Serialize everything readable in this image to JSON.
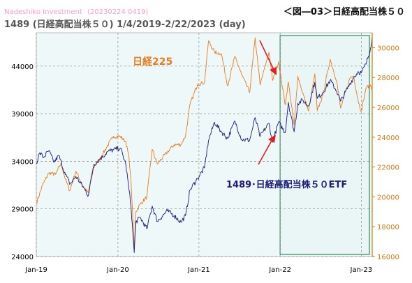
{
  "watermark": "Nadeshiko Investment",
  "watermark_date": "(20230224 0419)",
  "figure_title": "＜図―03＞日経高配当株５０",
  "subtitle": "1489 (日経高配当株５０) 1/4/2019-2/22/2023 (day)",
  "colors": {
    "etf_line": "#1a1a7a",
    "n225_line": "#e87b1e",
    "grid": "#888888",
    "highlight_border": "#2e8b57",
    "highlight_fill": "#eaf6f6",
    "plot_bg": "#eef8f8",
    "arrow": "#e02020",
    "right_axis": "#d07a10"
  },
  "chart_data": {
    "type": "line",
    "x_ticks": [
      "Jan-19",
      "Jan-20",
      "Jan-21",
      "Jan-22",
      "Jan-23"
    ],
    "xlim": [
      "2019-01-04",
      "2023-02-22"
    ],
    "y_left": {
      "ticks": [
        24000,
        29000,
        34000,
        39000,
        44000
      ],
      "ylim": [
        24000,
        47500
      ]
    },
    "y_right": {
      "ticks": [
        16000,
        18000,
        20000,
        22000,
        24000,
        26000,
        28000,
        30000
      ],
      "ylim": [
        16000,
        31000
      ]
    },
    "grid": true,
    "series": [
      {
        "name": "日経225",
        "axis": "right",
        "points": [
          [
            "2019-01-04",
            19560
          ],
          [
            "2019-02-01",
            20780
          ],
          [
            "2019-03-01",
            21600
          ],
          [
            "2019-04-01",
            21510
          ],
          [
            "2019-04-25",
            22260
          ],
          [
            "2019-05-15",
            21180
          ],
          [
            "2019-06-03",
            20400
          ],
          [
            "2019-07-01",
            21720
          ],
          [
            "2019-08-06",
            20580
          ],
          [
            "2019-08-26",
            20260
          ],
          [
            "2019-09-15",
            21900
          ],
          [
            "2019-10-15",
            22500
          ],
          [
            "2019-11-15",
            23300
          ],
          [
            "2019-12-17",
            24060
          ],
          [
            "2020-01-17",
            24040
          ],
          [
            "2020-02-10",
            23700
          ],
          [
            "2020-02-25",
            22600
          ],
          [
            "2020-03-05",
            21000
          ],
          [
            "2020-03-19",
            16550
          ],
          [
            "2020-03-26",
            19000
          ],
          [
            "2020-04-15",
            19500
          ],
          [
            "2020-05-15",
            20000
          ],
          [
            "2020-06-08",
            23180
          ],
          [
            "2020-07-01",
            22200
          ],
          [
            "2020-08-15",
            23000
          ],
          [
            "2020-09-15",
            23500
          ],
          [
            "2020-10-15",
            23500
          ],
          [
            "2020-11-05",
            24100
          ],
          [
            "2020-11-25",
            26200
          ],
          [
            "2020-12-29",
            27560
          ],
          [
            "2021-01-29",
            27660
          ],
          [
            "2021-02-16",
            30460
          ],
          [
            "2021-03-15",
            29700
          ],
          [
            "2021-04-15",
            29600
          ],
          [
            "2021-05-13",
            27450
          ],
          [
            "2021-06-15",
            29400
          ],
          [
            "2021-07-15",
            28200
          ],
          [
            "2021-08-20",
            27000
          ],
          [
            "2021-09-14",
            30670
          ],
          [
            "2021-10-06",
            27500
          ],
          [
            "2021-11-15",
            29700
          ],
          [
            "2021-12-01",
            27800
          ],
          [
            "2021-12-28",
            29060
          ],
          [
            "2022-01-27",
            26170
          ],
          [
            "2022-02-10",
            27700
          ],
          [
            "2022-03-08",
            24800
          ],
          [
            "2022-03-25",
            28100
          ],
          [
            "2022-04-15",
            27000
          ],
          [
            "2022-05-12",
            25750
          ],
          [
            "2022-06-09",
            28250
          ],
          [
            "2022-06-20",
            25770
          ],
          [
            "2022-07-15",
            26800
          ],
          [
            "2022-08-17",
            29220
          ],
          [
            "2022-09-15",
            27800
          ],
          [
            "2022-10-03",
            25940
          ],
          [
            "2022-11-15",
            28000
          ],
          [
            "2022-12-01",
            28100
          ],
          [
            "2022-12-20",
            26500
          ],
          [
            "2023-01-04",
            25720
          ],
          [
            "2023-01-25",
            27300
          ],
          [
            "2023-02-14",
            27500
          ],
          [
            "2023-02-22",
            27100
          ]
        ]
      },
      {
        "name": "1489･日経高配当株５０ETF",
        "axis": "left",
        "points": [
          [
            "2019-01-04",
            33800
          ],
          [
            "2019-01-20",
            34900
          ],
          [
            "2019-02-05",
            34400
          ],
          [
            "2019-03-01",
            35100
          ],
          [
            "2019-03-25",
            33900
          ],
          [
            "2019-04-15",
            34600
          ],
          [
            "2019-05-15",
            32600
          ],
          [
            "2019-06-05",
            31600
          ],
          [
            "2019-07-01",
            32400
          ],
          [
            "2019-08-06",
            31200
          ],
          [
            "2019-08-26",
            30400
          ],
          [
            "2019-09-20",
            33700
          ],
          [
            "2019-10-20",
            34300
          ],
          [
            "2019-11-20",
            35000
          ],
          [
            "2019-12-17",
            35200
          ],
          [
            "2020-01-17",
            35400
          ],
          [
            "2020-02-10",
            33700
          ],
          [
            "2020-02-25",
            31000
          ],
          [
            "2020-03-05",
            29200
          ],
          [
            "2020-03-19",
            24400
          ],
          [
            "2020-03-26",
            27600
          ],
          [
            "2020-04-15",
            28100
          ],
          [
            "2020-05-15",
            26900
          ],
          [
            "2020-06-08",
            29300
          ],
          [
            "2020-07-01",
            27700
          ],
          [
            "2020-08-15",
            28800
          ],
          [
            "2020-09-15",
            28300
          ],
          [
            "2020-10-15",
            27600
          ],
          [
            "2020-11-05",
            28300
          ],
          [
            "2020-11-25",
            31000
          ],
          [
            "2020-12-29",
            32200
          ],
          [
            "2021-01-29",
            33300
          ],
          [
            "2021-02-16",
            36200
          ],
          [
            "2021-03-15",
            38100
          ],
          [
            "2021-04-15",
            37100
          ],
          [
            "2021-05-13",
            36400
          ],
          [
            "2021-06-15",
            38200
          ],
          [
            "2021-07-15",
            36300
          ],
          [
            "2021-08-20",
            36200
          ],
          [
            "2021-09-14",
            38600
          ],
          [
            "2021-10-06",
            36600
          ],
          [
            "2021-11-15",
            38000
          ],
          [
            "2021-12-01",
            36000
          ],
          [
            "2021-12-28",
            38100
          ],
          [
            "2022-01-27",
            37000
          ],
          [
            "2022-02-10",
            40200
          ],
          [
            "2022-03-08",
            37100
          ],
          [
            "2022-03-25",
            40100
          ],
          [
            "2022-04-15",
            40400
          ],
          [
            "2022-05-12",
            39800
          ],
          [
            "2022-06-09",
            42300
          ],
          [
            "2022-06-20",
            40600
          ],
          [
            "2022-07-15",
            41200
          ],
          [
            "2022-08-17",
            42500
          ],
          [
            "2022-09-15",
            41400
          ],
          [
            "2022-10-03",
            40300
          ],
          [
            "2022-11-15",
            42200
          ],
          [
            "2022-12-01",
            42800
          ],
          [
            "2022-12-20",
            43400
          ],
          [
            "2023-01-04",
            43300
          ],
          [
            "2023-01-25",
            44200
          ],
          [
            "2023-02-14",
            45800
          ],
          [
            "2023-02-22",
            47200
          ]
        ]
      }
    ],
    "highlight_range": [
      "2022-01-04",
      "2023-02-22"
    ],
    "annotations": {
      "n225_label": "日経225",
      "etf_label": "1489･日経高配当株５０ETF"
    }
  }
}
